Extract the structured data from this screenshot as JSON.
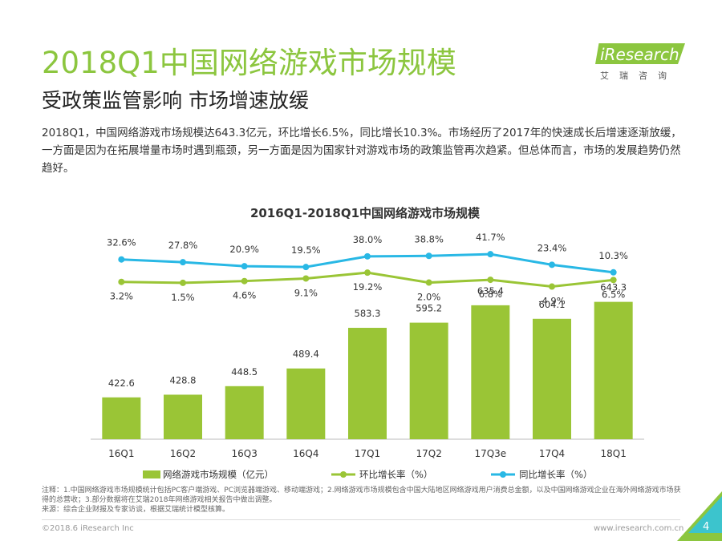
{
  "slide": {
    "title": "2018Q1中国网络游戏市场规模",
    "subtitle": "受政策监管影响 市场增速放缓",
    "body": "2018Q1，中国网络游戏市场规模达643.3亿元，环比增长6.5%，同比增长10.3%。市场经历了2017年的快速成长后增速逐渐放缓，一方面是因为在拓展增量市场时遇到瓶颈，另一方面是因为国家针对游戏市场的政策监管再次趋紧。但总体而言，市场的发展趋势仍然趋好。",
    "page_number": "4"
  },
  "logo": {
    "brand": "iResearch",
    "sub": "艾瑞咨询"
  },
  "notes": {
    "line1": "注释：1.中国网络游戏市场规模统计包括PC客户端游戏、PC浏览器端游戏、移动端游戏；2.网络游戏市场规模包含中国大陆地区网络游戏用户消费总金额，以及中国网络游戏企业在海外网络游戏市场获得的总营收；3.部分数据将在艾瑞2018年网络游戏相关报告中做出调整。",
    "line2": "来源：综合企业财报及专家访谈，根据艾瑞统计模型核算。"
  },
  "footer": {
    "copyright": "©2018.6 iResearch Inc",
    "url": "www.iresearch.com.cn"
  },
  "colors": {
    "bar": "#9ac536",
    "qoq": "#9ac536",
    "yoy": "#29b8e5",
    "accent": "#8cc63f"
  },
  "chart_data": {
    "type": "bar",
    "title": "2016Q1-2018Q1中国网络游戏市场规模",
    "categories": [
      "16Q1",
      "16Q2",
      "16Q3",
      "16Q4",
      "17Q1",
      "17Q2",
      "17Q3e",
      "17Q4",
      "18Q1"
    ],
    "series": [
      {
        "name": "网络游戏市场规模（亿元）",
        "type": "bar",
        "values": [
          422.6,
          428.8,
          448.5,
          489.4,
          583.3,
          595.2,
          635.4,
          604.1,
          643.3
        ],
        "labels": [
          "422.6",
          "428.8",
          "448.5",
          "489.4",
          "583.3",
          "595.2",
          "635.4",
          "604.1",
          "643.3"
        ]
      },
      {
        "name": "环比增长率（%）",
        "type": "line",
        "values": [
          3.2,
          1.5,
          4.6,
          9.1,
          19.2,
          2.0,
          6.8,
          -4.9,
          6.5
        ],
        "labels": [
          "3.2%",
          "1.5%",
          "4.6%",
          "9.1%",
          "19.2%",
          "2.0%",
          "6.8%",
          "-4.9%",
          "6.5%"
        ]
      },
      {
        "name": "同比增长率（%）",
        "type": "line",
        "values": [
          32.6,
          27.8,
          20.9,
          19.5,
          38.0,
          38.8,
          41.7,
          23.4,
          10.3
        ],
        "labels": [
          "32.6%",
          "27.8%",
          "20.9%",
          "19.5%",
          "38.0%",
          "38.8%",
          "41.7%",
          "23.4%",
          "10.3%"
        ]
      }
    ],
    "legend_position": "bottom",
    "grid": false
  }
}
